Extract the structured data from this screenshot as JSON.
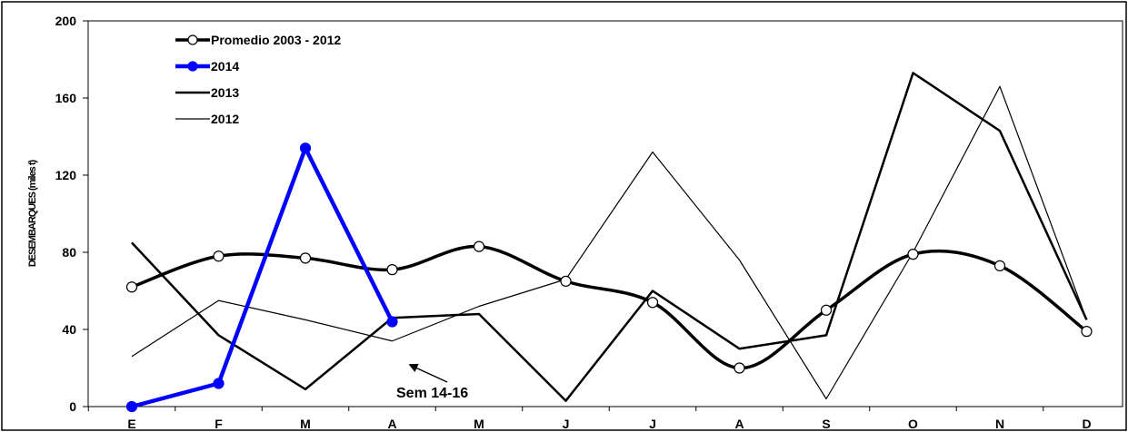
{
  "chart_data": {
    "type": "line",
    "ylabel": "DESEMBARQUES (miles t)",
    "xlabel": "",
    "ylim": [
      0,
      200
    ],
    "yticks": [
      0,
      40,
      80,
      120,
      160,
      200
    ],
    "categories": [
      "E",
      "F",
      "M",
      "A",
      "M",
      "J",
      "J",
      "A",
      "S",
      "O",
      "N",
      "D"
    ],
    "grid": false,
    "legend_position": "top-left",
    "series": [
      {
        "name": "Promedio 2003 - 2012",
        "color": "#000000",
        "style": "thick-smooth-open-markers",
        "values": [
          62,
          78,
          77,
          71,
          83,
          65,
          54,
          20,
          50,
          79,
          73,
          39
        ]
      },
      {
        "name": "2014",
        "color": "#0000ff",
        "style": "thick-filled-markers",
        "values": [
          0,
          12,
          134,
          44,
          null,
          null,
          null,
          null,
          null,
          null,
          null,
          null
        ]
      },
      {
        "name": "2013",
        "color": "#000000",
        "style": "medium",
        "values": [
          85,
          37,
          9,
          46,
          48,
          3,
          60,
          30,
          37,
          173,
          143,
          45
        ]
      },
      {
        "name": "2012",
        "color": "#000000",
        "style": "thin",
        "values": [
          26,
          55,
          45,
          34,
          52,
          66,
          132,
          76,
          4,
          80,
          166,
          45
        ]
      }
    ],
    "annotations": [
      {
        "text": "Sem 14-16",
        "arrow_to_category_index": 3,
        "arrow_to_value": 22
      }
    ]
  }
}
